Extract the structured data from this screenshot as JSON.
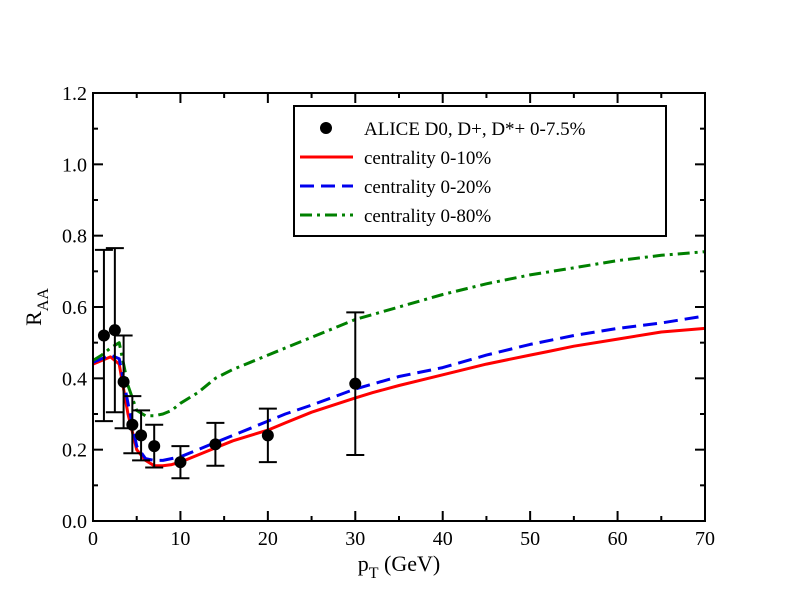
{
  "chart_data": {
    "type": "line",
    "title": "",
    "xlabel": {
      "main": "p",
      "sub": "T",
      "rest": " (GeV)"
    },
    "ylabel": {
      "main": "R",
      "sub": "AA"
    },
    "xlim": [
      0,
      70
    ],
    "ylim": [
      0.0,
      1.2
    ],
    "xticks": [
      0,
      10,
      20,
      30,
      40,
      50,
      60,
      70
    ],
    "yticks": [
      "0.0",
      "0.2",
      "0.4",
      "0.6",
      "0.8",
      "1.0",
      "1.2"
    ],
    "grid": false,
    "legend_position": "top-right",
    "data_points": {
      "name": "ALICE D0, D+, D*+ 0-7.5%",
      "color": "#000000",
      "points": [
        {
          "x": 1.25,
          "y": 0.52,
          "err": 0.24
        },
        {
          "x": 2.5,
          "y": 0.535,
          "err": 0.23
        },
        {
          "x": 3.5,
          "y": 0.39,
          "err": 0.13
        },
        {
          "x": 4.5,
          "y": 0.27,
          "err": 0.08
        },
        {
          "x": 5.5,
          "y": 0.24,
          "err": 0.07
        },
        {
          "x": 7.0,
          "y": 0.21,
          "err": 0.06
        },
        {
          "x": 10.0,
          "y": 0.165,
          "err": 0.045
        },
        {
          "x": 14.0,
          "y": 0.215,
          "err": 0.06
        },
        {
          "x": 20.0,
          "y": 0.24,
          "err": 0.075
        },
        {
          "x": 30.0,
          "y": 0.385,
          "err": 0.2
        }
      ]
    },
    "series": [
      {
        "name": "centrality 0-10%",
        "color": "#ff0000",
        "dash": "solid",
        "x": [
          0,
          1,
          2,
          3,
          4,
          5,
          6,
          7,
          8,
          9,
          10,
          12,
          14,
          16,
          18,
          20,
          22,
          25,
          30,
          32,
          35,
          40,
          45,
          50,
          52,
          55,
          60,
          65,
          70
        ],
        "y": [
          0.44,
          0.45,
          0.46,
          0.44,
          0.3,
          0.2,
          0.17,
          0.155,
          0.155,
          0.158,
          0.165,
          0.185,
          0.205,
          0.225,
          0.24,
          0.255,
          0.275,
          0.305,
          0.345,
          0.36,
          0.38,
          0.41,
          0.44,
          0.465,
          0.475,
          0.49,
          0.51,
          0.53,
          0.54
        ]
      },
      {
        "name": "centrality 0-20%",
        "color": "#0000ee",
        "dash": "dashed",
        "x": [
          0,
          1,
          2,
          3,
          4,
          5,
          6,
          7,
          8,
          10,
          12,
          14,
          16,
          18,
          20,
          22,
          25,
          30,
          35,
          40,
          45,
          50,
          55,
          60,
          65,
          70
        ],
        "y": [
          0.445,
          0.455,
          0.465,
          0.455,
          0.33,
          0.21,
          0.175,
          0.17,
          0.17,
          0.18,
          0.2,
          0.22,
          0.24,
          0.26,
          0.28,
          0.3,
          0.325,
          0.37,
          0.405,
          0.43,
          0.465,
          0.495,
          0.52,
          0.54,
          0.555,
          0.575
        ]
      },
      {
        "name": "centrality 0-80%",
        "color": "#008000",
        "dash": "dashdot",
        "x": [
          0,
          1,
          2,
          3,
          4,
          5,
          6,
          7,
          8,
          9,
          10,
          12,
          14,
          16,
          18,
          20,
          22,
          25,
          28,
          30,
          35,
          40,
          45,
          50,
          55,
          60,
          65,
          70
        ],
        "y": [
          0.45,
          0.465,
          0.485,
          0.5,
          0.38,
          0.31,
          0.295,
          0.295,
          0.3,
          0.31,
          0.33,
          0.36,
          0.4,
          0.425,
          0.445,
          0.465,
          0.485,
          0.515,
          0.545,
          0.565,
          0.6,
          0.635,
          0.665,
          0.69,
          0.71,
          0.73,
          0.745,
          0.755
        ]
      }
    ]
  }
}
